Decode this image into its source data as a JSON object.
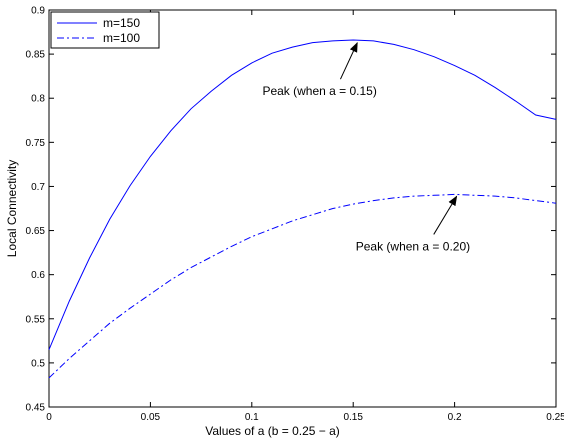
{
  "chart_data": {
    "type": "line",
    "title": "",
    "xlabel": "Values of a  (b = 0.25 − a)",
    "ylabel": "Local Connectivity",
    "xlim": [
      0,
      0.25
    ],
    "ylim": [
      0.45,
      0.9
    ],
    "xticks": [
      0,
      0.05,
      0.1,
      0.15,
      0.2,
      0.25
    ],
    "xtick_labels": [
      "0",
      "0.05",
      "0.1",
      "0.15",
      "0.2",
      "0.25"
    ],
    "yticks": [
      0.45,
      0.5,
      0.55,
      0.6,
      0.65,
      0.7,
      0.75,
      0.8,
      0.85,
      0.9
    ],
    "ytick_labels": [
      "0.45",
      "0.5",
      "0.55",
      "0.6",
      "0.65",
      "0.7",
      "0.75",
      "0.8",
      "0.85",
      "0.9"
    ],
    "grid": false,
    "legend_position": "top-left",
    "series": [
      {
        "name": "m=150",
        "color": "#0000ff",
        "line_style": "solid",
        "x": [
          0,
          0.01,
          0.02,
          0.03,
          0.04,
          0.05,
          0.06,
          0.07,
          0.08,
          0.09,
          0.1,
          0.11,
          0.12,
          0.13,
          0.14,
          0.15,
          0.16,
          0.17,
          0.18,
          0.19,
          0.2,
          0.21,
          0.22,
          0.23,
          0.24,
          0.25
        ],
        "y": [
          0.515,
          0.57,
          0.619,
          0.663,
          0.701,
          0.734,
          0.763,
          0.788,
          0.808,
          0.826,
          0.84,
          0.851,
          0.858,
          0.863,
          0.865,
          0.866,
          0.865,
          0.861,
          0.855,
          0.847,
          0.837,
          0.826,
          0.812,
          0.797,
          0.781,
          0.776
        ]
      },
      {
        "name": "m=100",
        "color": "#0000ff",
        "line_style": "dashdot",
        "x": [
          0,
          0.01,
          0.02,
          0.03,
          0.04,
          0.05,
          0.06,
          0.07,
          0.08,
          0.09,
          0.1,
          0.11,
          0.12,
          0.13,
          0.14,
          0.15,
          0.16,
          0.17,
          0.18,
          0.19,
          0.2,
          0.21,
          0.22,
          0.23,
          0.24,
          0.25
        ],
        "y": [
          0.483,
          0.505,
          0.525,
          0.545,
          0.562,
          0.578,
          0.594,
          0.608,
          0.62,
          0.632,
          0.643,
          0.652,
          0.661,
          0.668,
          0.675,
          0.68,
          0.684,
          0.687,
          0.689,
          0.69,
          0.691,
          0.69,
          0.689,
          0.687,
          0.684,
          0.681
        ]
      }
    ],
    "annotations": [
      {
        "text": "Peak (when a = 0.15)",
        "arrow_to": [
          0.152,
          0.865
        ],
        "text_at": [
          0.123,
          0.808
        ]
      },
      {
        "text": "Peak (when a = 0.20)",
        "arrow_to": [
          0.201,
          0.691
        ],
        "text_at": [
          0.169,
          0.632
        ]
      }
    ]
  }
}
